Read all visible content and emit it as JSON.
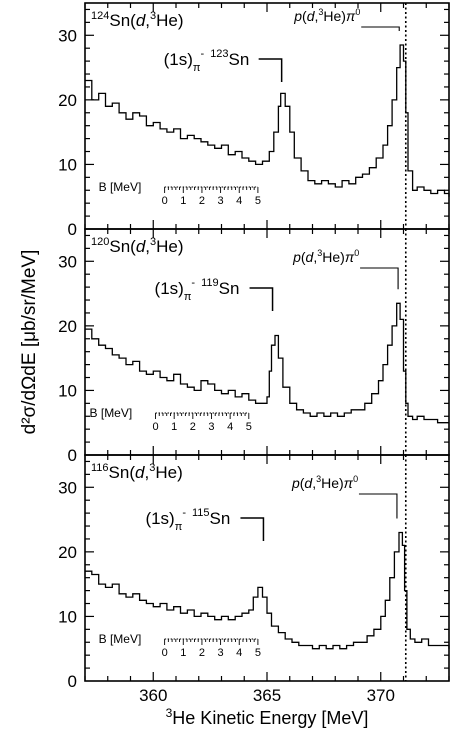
{
  "chart_data": {
    "type": "line",
    "x_axis": {
      "label_sup": "3",
      "label": "He Kinetic Energy [MeV]",
      "range": [
        357,
        373
      ],
      "ticks": [
        "360",
        "365",
        "370"
      ],
      "tick_values": [
        360,
        365,
        370
      ]
    },
    "y_axis": {
      "label": "d²σ/dΩdE [μb/sr/MeV]",
      "range": [
        0,
        35
      ],
      "ticks": [
        "0",
        "10",
        "20",
        "30"
      ],
      "tick_values": [
        0,
        10,
        20,
        30
      ]
    },
    "threshold_line_x": 371.1,
    "panels": [
      {
        "target": {
          "mass": "124",
          "element": "Sn(",
          "proj": "d",
          "sep": ",",
          "sup": "3",
          "prod": "He)"
        },
        "peak_label": {
          "state": "(1s)",
          "sub": "π",
          "sup1": "-",
          "sup2": "123",
          "element": "Sn"
        },
        "peak_x": 365.6,
        "peak_y": 21,
        "pi0_label": {
          "p": "p",
          "open": "(",
          "d": "d",
          "comma": ",",
          "sup3": "3",
          "he": "He)",
          "pi": "π",
          "zero": "0"
        },
        "pi0_x": 370.9,
        "pi0_y": 28.5,
        "b_scale": {
          "title": "B [MeV]",
          "ticks": [
            "0",
            "1",
            "2",
            "3",
            "4",
            "5"
          ],
          "x_at_0": 360.5,
          "x_at_5": 364.6
        },
        "x": [
          357,
          357.3,
          357.6,
          357.9,
          358.2,
          358.5,
          358.8,
          359.1,
          359.4,
          359.7,
          360.0,
          360.3,
          360.6,
          360.9,
          361.2,
          361.5,
          361.8,
          362.1,
          362.4,
          362.7,
          363.0,
          363.3,
          363.6,
          363.9,
          364.2,
          364.5,
          364.8,
          365.1,
          365.3,
          365.5,
          365.6,
          365.8,
          366.0,
          366.2,
          366.5,
          366.8,
          367.1,
          367.4,
          367.7,
          368.0,
          368.3,
          368.6,
          368.9,
          369.2,
          369.5,
          369.8,
          370.1,
          370.3,
          370.5,
          370.7,
          370.85,
          371.0,
          371.1,
          371.2,
          371.4,
          371.6,
          371.9,
          372.2,
          372.5,
          372.8,
          373.0
        ],
        "y": [
          23,
          20,
          21,
          19,
          19.5,
          18,
          17,
          18,
          17.5,
          16,
          16.5,
          15.5,
          15,
          15.5,
          14,
          14.5,
          14,
          13.5,
          13,
          12.5,
          13,
          11.5,
          12,
          11,
          10.5,
          10,
          10.5,
          12,
          15,
          19,
          21,
          19,
          15,
          11,
          9,
          7.5,
          7,
          7.5,
          7,
          6.5,
          7.5,
          7,
          8,
          8.5,
          9.5,
          11,
          13,
          16,
          20,
          25,
          28.5,
          26,
          18,
          9,
          6,
          6.5,
          6,
          5.5,
          6,
          5.5,
          5
        ]
      },
      {
        "target": {
          "mass": "120",
          "element": "Sn(",
          "proj": "d",
          "sep": ",",
          "sup": "3",
          "prod": "He)"
        },
        "peak_label": {
          "state": "(1s)",
          "sub": "π",
          "sup1": "-",
          "sup2": "119",
          "element": "Sn"
        },
        "peak_x": 365.2,
        "peak_y": 18.5,
        "pi0_label": {
          "p": "p",
          "open": "(",
          "d": "d",
          "comma": ",",
          "sup3": "3",
          "he": "He)",
          "pi": "π",
          "zero": "0"
        },
        "pi0_x": 370.85,
        "pi0_y": 23.5,
        "b_scale": {
          "title": "B [MeV]",
          "ticks": [
            "0",
            "1",
            "2",
            "3",
            "4",
            "5"
          ],
          "x_at_0": 360.1,
          "x_at_5": 364.2
        },
        "x": [
          357,
          357.3,
          357.6,
          357.9,
          358.2,
          358.5,
          358.8,
          359.1,
          359.4,
          359.7,
          360.0,
          360.3,
          360.6,
          360.9,
          361.2,
          361.5,
          361.8,
          362.1,
          362.4,
          362.7,
          363.0,
          363.3,
          363.6,
          363.9,
          364.2,
          364.5,
          364.8,
          365.0,
          365.1,
          365.2,
          365.35,
          365.5,
          365.7,
          366.0,
          366.3,
          366.6,
          366.9,
          367.2,
          367.5,
          367.8,
          368.1,
          368.4,
          368.7,
          369.0,
          369.3,
          369.6,
          369.9,
          370.1,
          370.3,
          370.5,
          370.7,
          370.85,
          371.0,
          371.1,
          371.2,
          371.4,
          371.6,
          371.9,
          372.2,
          372.5,
          372.8,
          373.0
        ],
        "y": [
          19.5,
          18,
          17,
          16.5,
          15.5,
          15,
          14,
          14.5,
          13,
          12.5,
          13,
          12,
          11.5,
          12.5,
          11,
          10.5,
          10,
          11.5,
          11,
          10,
          9.5,
          10,
          9,
          9.5,
          8.5,
          8,
          8,
          9,
          13,
          17,
          18.5,
          15,
          10.5,
          8,
          7,
          6.5,
          6,
          6.5,
          6,
          6.5,
          6,
          6.5,
          7,
          7,
          8,
          9.5,
          11.5,
          14,
          17,
          20,
          23.5,
          21,
          13,
          8,
          6,
          5.5,
          6,
          5.5,
          5.5,
          5,
          5,
          5
        ]
      },
      {
        "target": {
          "mass": "116",
          "element": "Sn(",
          "proj": "d",
          "sep": ",",
          "sup": "3",
          "prod": "He)"
        },
        "peak_label": {
          "state": "(1s)",
          "sub": "π",
          "sup1": "-",
          "sup2": "115",
          "element": "Sn"
        },
        "peak_x": 364.8,
        "peak_y": 14.5,
        "pi0_label": {
          "p": "p",
          "open": "(",
          "d": "d",
          "comma": ",",
          "sup3": "3",
          "he": "He)",
          "pi": "π",
          "zero": "0"
        },
        "pi0_x": 370.8,
        "pi0_y": 23,
        "b_scale": {
          "title": "B [MeV]",
          "ticks": [
            "0",
            "1",
            "2",
            "3",
            "4",
            "5"
          ],
          "x_at_0": 360.5,
          "x_at_5": 364.6
        },
        "x": [
          357,
          357.3,
          357.6,
          357.9,
          358.2,
          358.5,
          358.8,
          359.1,
          359.4,
          359.7,
          360.0,
          360.3,
          360.6,
          360.9,
          361.2,
          361.5,
          361.8,
          362.1,
          362.4,
          362.7,
          363.0,
          363.3,
          363.6,
          363.9,
          364.2,
          364.4,
          364.6,
          364.8,
          365.0,
          365.2,
          365.5,
          365.8,
          366.1,
          366.4,
          366.7,
          367.0,
          367.3,
          367.6,
          367.9,
          368.2,
          368.5,
          368.8,
          369.1,
          369.4,
          369.7,
          370.0,
          370.2,
          370.4,
          370.6,
          370.8,
          370.95,
          371.05,
          371.15,
          371.3,
          371.5,
          371.8,
          372.1,
          372.4,
          372.7,
          373.0
        ],
        "y": [
          17,
          16.5,
          15,
          14.5,
          15,
          13.5,
          13,
          13.5,
          12.5,
          12,
          11.5,
          12,
          11,
          11.5,
          10.5,
          11,
          10,
          10.5,
          10,
          9.5,
          10,
          9.5,
          10,
          10.5,
          11,
          13,
          14.5,
          13,
          10.5,
          8.5,
          7.5,
          6.5,
          6,
          5.5,
          5.5,
          5,
          5.5,
          5,
          5.5,
          5,
          5.5,
          6,
          6,
          7,
          8,
          10,
          12.5,
          16,
          20,
          23,
          21,
          14,
          8,
          6.5,
          6,
          6.5,
          5.5,
          5.5,
          5.5,
          5
        ]
      }
    ]
  }
}
